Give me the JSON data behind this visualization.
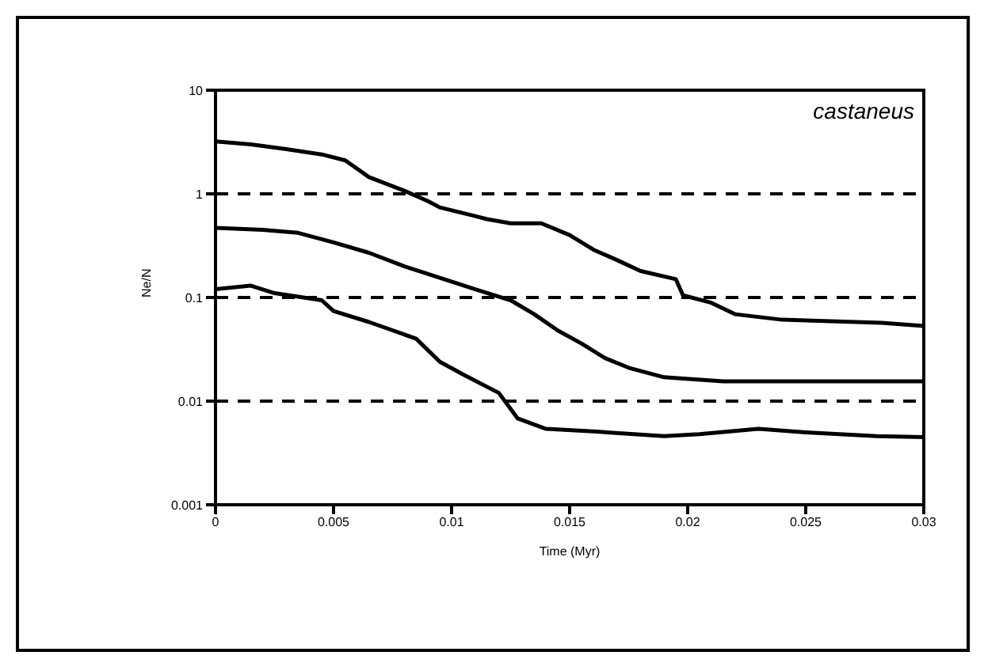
{
  "chart_data": {
    "type": "line",
    "xlabel": "Time (Myr)",
    "ylabel": "Ne/N",
    "annotations": [
      "castaneus"
    ],
    "series": [
      {
        "color": "#000000",
        "x": [
          0,
          0.0015,
          0.003,
          0.0045,
          0.0055,
          0.0065,
          0.008,
          0.009,
          0.0095,
          0.011,
          0.0115,
          0.0125,
          0.0138,
          0.015,
          0.016,
          0.017,
          0.018,
          0.0195,
          0.0198,
          0.021,
          0.022,
          0.024,
          0.0282,
          0.03
        ],
        "values": [
          3.2,
          3.0,
          2.7,
          2.4,
          2.1,
          1.45,
          1.07,
          0.85,
          0.74,
          0.61,
          0.57,
          0.52,
          0.52,
          0.4,
          0.29,
          0.23,
          0.18,
          0.15,
          0.105,
          0.089,
          0.069,
          0.061,
          0.057,
          0.053
        ]
      },
      {
        "color": "#000000",
        "x": [
          0,
          0.002,
          0.0035,
          0.005,
          0.0065,
          0.008,
          0.0095,
          0.011,
          0.0125,
          0.0135,
          0.0145,
          0.0155,
          0.0165,
          0.0175,
          0.019,
          0.0215,
          0.03
        ],
        "values": [
          0.47,
          0.45,
          0.42,
          0.34,
          0.27,
          0.2,
          0.155,
          0.12,
          0.094,
          0.069,
          0.048,
          0.036,
          0.026,
          0.021,
          0.017,
          0.0155,
          0.0155
        ]
      },
      {
        "color": "#000000",
        "x": [
          0,
          0.0015,
          0.0025,
          0.0045,
          0.005,
          0.0065,
          0.0085,
          0.0095,
          0.0105,
          0.012,
          0.0128,
          0.014,
          0.016,
          0.019,
          0.0205,
          0.023,
          0.025,
          0.028,
          0.03
        ],
        "values": [
          0.12,
          0.13,
          0.11,
          0.094,
          0.074,
          0.058,
          0.04,
          0.024,
          0.018,
          0.012,
          0.0068,
          0.0054,
          0.0051,
          0.0046,
          0.0048,
          0.0054,
          0.005,
          0.0046,
          0.0045
        ]
      }
    ],
    "xlim": [
      0,
      0.03
    ],
    "xticks": [
      0,
      0.005,
      0.01,
      0.015,
      0.02,
      0.025,
      0.03
    ],
    "ylim": [
      0.001,
      10
    ],
    "yticks": [
      0.001,
      0.01,
      0.1,
      1,
      10
    ],
    "log": true,
    "grid": "y",
    "marker": "none",
    "line_style": "solid"
  }
}
